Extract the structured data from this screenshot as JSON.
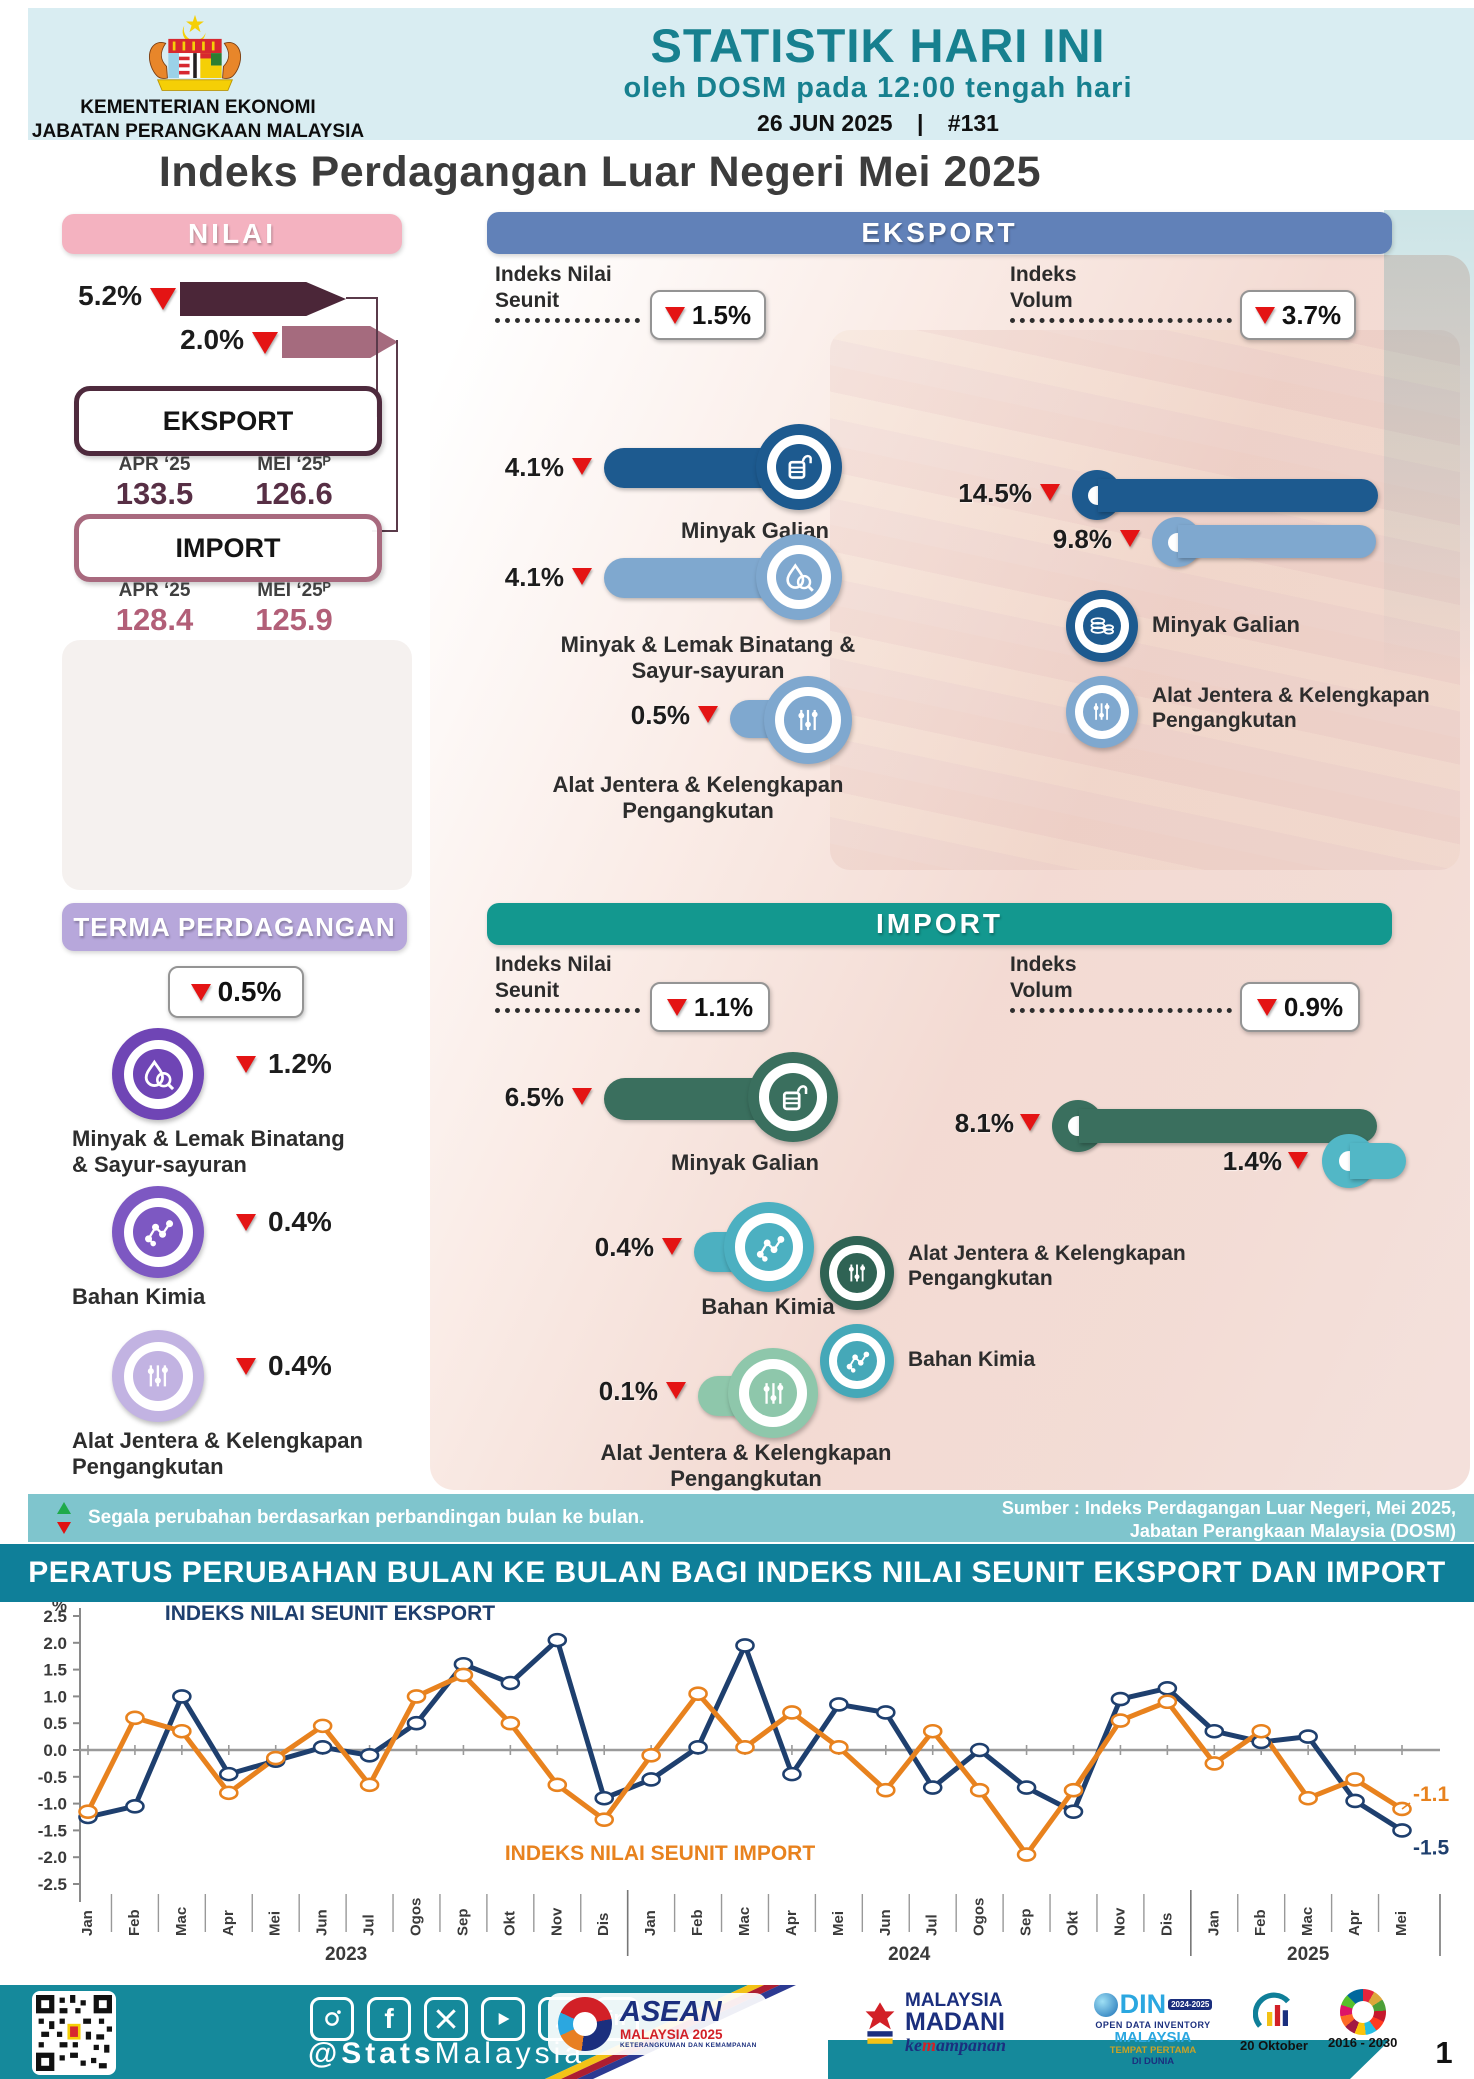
{
  "header": {
    "agency_line1": "KEMENTERIAN EKONOMI",
    "agency_line2": "JABATAN PERANGKAAN MALAYSIA",
    "title": "STATISTIK HARI INI",
    "subtitle": "oleh DOSM pada 12:00 tengah hari",
    "date": "26 JUN 2025",
    "separator": "|",
    "issue_no": "#131"
  },
  "page_title": "Indeks Perdagangan Luar Negeri Mei 2025",
  "colors": {
    "teal_brand": "#17808f",
    "pink_header": "#f4b2c0",
    "maroon_dark": "#4b2638",
    "mauve": "#a56b7e",
    "blue_header": "#6181b8",
    "blue_dark": "#1d5a8f",
    "blue_light": "#7fa8cf",
    "purple_header": "#b7a7db",
    "purple_dark": "#6f45b5",
    "purple_mid": "#7d58c2",
    "purple_light": "#c2b3e2",
    "teal_header": "#13988f",
    "green_dark": "#3a6f5e",
    "teal_icon": "#4cb0c1",
    "green_light": "#8ec7ab",
    "red_down": "#e41414"
  },
  "nilai": {
    "header": "NILAI",
    "eksport_pct": "5.2%",
    "import_pct": "2.0%",
    "eksport_label": "EKSPORT",
    "import_label": "IMPORT",
    "col_apr": "APR ‘25",
    "col_mei": "MEI ‘25ᴾ",
    "eksport_apr": "133.5",
    "eksport_mei": "126.6",
    "import_apr": "128.4",
    "import_mei": "125.9"
  },
  "eksport_panel": {
    "header": "EKSPORT",
    "unit_label": "Indeks Nilai Seunit",
    "unit_pct": "1.5%",
    "volum_label": "Indeks Volum",
    "volum_pct": "3.7%",
    "bars": [
      {
        "pct": "4.1%",
        "label": "Minyak Galian"
      },
      {
        "pct": "4.1%",
        "label": "Minyak & Lemak Binatang & Sayur-sayuran"
      },
      {
        "pct": "0.5%",
        "label": "Alat Jentera & Kelengkapan Pengangkutan"
      }
    ],
    "volum_items": [
      {
        "pct": "14.5%",
        "label": "Minyak Galian"
      },
      {
        "pct": "9.8%",
        "label": "Alat Jentera & Kelengkapan Pengangkutan"
      }
    ]
  },
  "terma_panel": {
    "header": "TERMA PERDAGANGAN",
    "overall_pct": "0.5%",
    "items": [
      {
        "pct": "1.2%",
        "label": "Minyak & Lemak Binatang & Sayur-sayuran"
      },
      {
        "pct": "0.4%",
        "label": "Bahan Kimia"
      },
      {
        "pct": "0.4%",
        "label": "Alat Jentera & Kelengkapan Pengangkutan"
      }
    ]
  },
  "import_panel": {
    "header": "IMPORT",
    "unit_label": "Indeks Nilai Seunit",
    "unit_pct": "1.1%",
    "volum_label": "Indeks Volum",
    "volum_pct": "0.9%",
    "bars": [
      {
        "pct": "6.5%",
        "label": "Minyak Galian"
      },
      {
        "pct": "0.4%",
        "label": "Bahan Kimia"
      },
      {
        "pct": "0.1%",
        "label": "Alat Jentera & Kelengkapan Pengangkutan"
      }
    ],
    "volum_items": [
      {
        "pct": "8.1%",
        "label": "Alat Jentera & Kelengkapan Pengangkutan"
      },
      {
        "pct": "1.4%",
        "label": "Bahan Kimia"
      }
    ]
  },
  "note_bar": {
    "note": "Segala perubahan berdasarkan perbandingan bulan ke bulan.",
    "source_line1": "Sumber : Indeks Perdagangan Luar Negeri, Mei 2025,",
    "source_line2": "Jabatan Perangkaan Malaysia (DOSM)"
  },
  "chart_title": "PERATUS PERUBAHAN BULAN KE BULAN BAGI INDEKS NILAI SEUNIT EKSPORT DAN IMPORT",
  "chart_data": {
    "type": "line",
    "ylabel": "%",
    "ylim": [
      -2.5,
      2.5
    ],
    "ytick_step": 0.5,
    "grid": false,
    "legend_position": "annotations",
    "x": [
      "Jan",
      "Feb",
      "Mac",
      "Apr",
      "Mei",
      "Jun",
      "Jul",
      "Ogos",
      "Sep",
      "Okt",
      "Nov",
      "Dis",
      "Jan",
      "Feb",
      "Mac",
      "Apr",
      "Mei",
      "Jun",
      "Jul",
      "Ogos",
      "Sep",
      "Okt",
      "Nov",
      "Dis",
      "Jan",
      "Feb",
      "Mac",
      "Apr",
      "Mei"
    ],
    "year_groups": [
      {
        "label": "2023",
        "start": 0,
        "end": 11
      },
      {
        "label": "2024",
        "start": 12,
        "end": 23
      },
      {
        "label": "2025",
        "start": 24,
        "end": 28
      }
    ],
    "series": [
      {
        "name": "INDEKS NILAI SEUNIT EKSPORT",
        "color": "#1e3f6e",
        "end_label": "-1.5",
        "values": [
          -1.25,
          -1.05,
          1.0,
          -0.45,
          -0.2,
          0.05,
          -0.1,
          0.5,
          1.6,
          1.25,
          2.05,
          -0.9,
          -0.55,
          0.05,
          1.95,
          -0.45,
          0.85,
          0.7,
          -0.7,
          0.0,
          -0.7,
          -1.15,
          0.95,
          1.15,
          0.35,
          0.15,
          0.25,
          -0.95,
          -1.5
        ]
      },
      {
        "name": "INDEKS NILAI SEUNIT IMPORT",
        "color": "#e8821e",
        "end_label": "-1.1",
        "values": [
          -1.15,
          0.6,
          0.35,
          -0.8,
          -0.15,
          0.45,
          -0.65,
          1.0,
          1.4,
          0.5,
          -0.65,
          -1.3,
          -0.1,
          1.05,
          0.05,
          0.7,
          0.05,
          -0.75,
          0.35,
          -0.75,
          -1.95,
          -0.75,
          0.55,
          0.9,
          -0.25,
          0.35,
          -0.9,
          -0.55,
          -1.1
        ]
      }
    ]
  },
  "footer": {
    "handle_bold": "@Stats",
    "handle_rest": "Malaysia",
    "social_icons": [
      "instagram-icon",
      "facebook-icon",
      "x-icon",
      "youtube-icon",
      "tiktok-icon",
      "linkedin-icon"
    ],
    "logos": {
      "asean_line1": "ASEAN",
      "asean_line2": "MALAYSIA 2025",
      "asean_line3": "KETERANGKUMAN DAN KEMAMPANAN",
      "madani_line1": "MALAYSIA",
      "madani_line2": "MADANI",
      "madani_script_pre": "ke",
      "madani_script_m": "m",
      "madani_script_post": "ampanan",
      "odin_name": "DIN",
      "odin_badge": "2024-2025",
      "odin_line2": "OPEN DATA INVENTORY",
      "odin_line3": "MALAYSIA",
      "odin_line4": "TEMPAT PERTAMA",
      "odin_line5": "DI DUNIA",
      "hsn_date": "20 Oktober",
      "sdg_years": "2016 - 2030"
    },
    "page_number": "1"
  }
}
